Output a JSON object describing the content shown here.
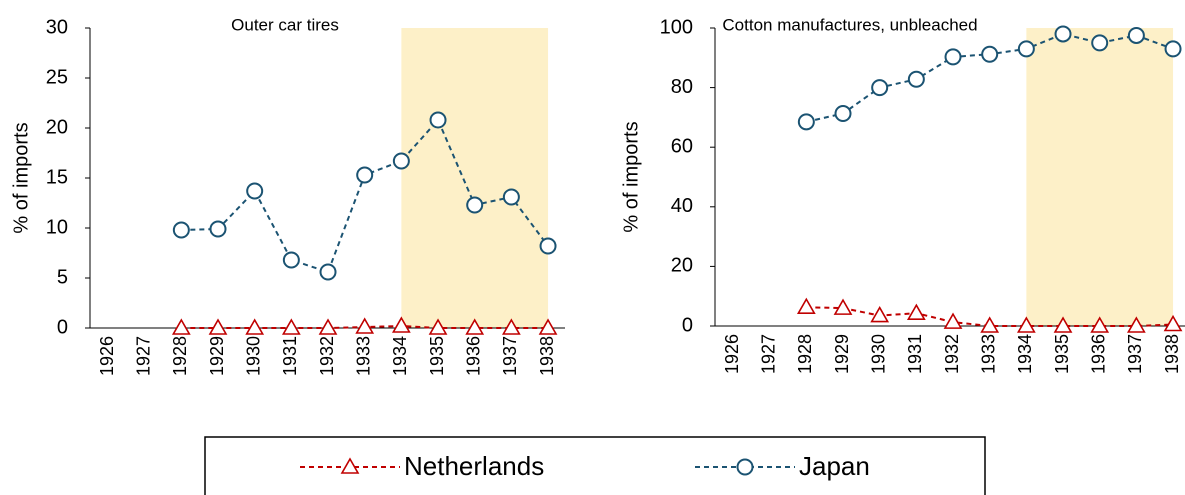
{
  "chart_data": [
    {
      "type": "line",
      "title": "Outer car tires",
      "y_label": "% of imports",
      "categories": [
        "1926",
        "1927",
        "1928",
        "1929",
        "1930",
        "1931",
        "1932",
        "1933",
        "1934",
        "1935",
        "1936",
        "1937",
        "1938"
      ],
      "series": [
        {
          "name": "Netherlands",
          "color": "#c00000",
          "marker": "triangle",
          "values": [
            null,
            null,
            0,
            0,
            0,
            0,
            0,
            0.1,
            0.2,
            0,
            0,
            0,
            0
          ]
        },
        {
          "name": "Japan",
          "color": "#1b5372",
          "marker": "circle",
          "values": [
            null,
            null,
            9.8,
            9.9,
            13.7,
            6.8,
            5.6,
            15.3,
            16.7,
            20.8,
            12.3,
            13.1,
            8.2
          ]
        }
      ],
      "ylim": [
        0,
        30
      ],
      "yticks": [
        0,
        5,
        10,
        15,
        20,
        25,
        30
      ],
      "highlight": {
        "from": "1934",
        "to": "1938",
        "color": "#fdf0c8"
      }
    },
    {
      "type": "line",
      "title": "Cotton manufactures, unbleached",
      "y_label": "% of imports",
      "categories": [
        "1926",
        "1927",
        "1928",
        "1929",
        "1930",
        "1931",
        "1932",
        "1933",
        "1934",
        "1935",
        "1936",
        "1937",
        "1938"
      ],
      "series": [
        {
          "name": "Netherlands",
          "color": "#c00000",
          "marker": "triangle",
          "values": [
            null,
            null,
            6.3,
            6,
            3.5,
            4.3,
            1.3,
            0,
            0,
            0,
            0,
            0,
            0.5
          ]
        },
        {
          "name": "Japan",
          "color": "#1b5372",
          "marker": "circle",
          "values": [
            null,
            null,
            68.5,
            71.3,
            80,
            82.8,
            90.3,
            91.2,
            93,
            98,
            95,
            97.5,
            93
          ]
        }
      ],
      "ylim": [
        0,
        100
      ],
      "yticks": [
        0,
        20,
        40,
        60,
        80,
        100
      ],
      "highlight": {
        "from": "1934",
        "to": "1938",
        "color": "#fdf0c8"
      }
    }
  ]
}
